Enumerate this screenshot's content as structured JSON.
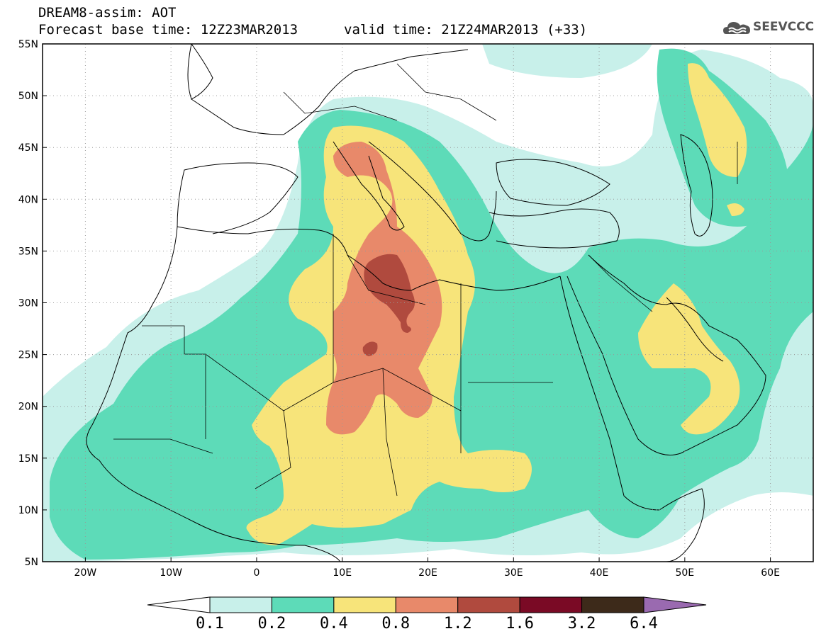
{
  "title": {
    "line1": "DREAM8-assim: AOT",
    "line2_left": "Forecast base time: 12Z23MAR2013",
    "line2_right": "valid time: 21Z24MAR2013 (+33)"
  },
  "logo": {
    "text": "SEEVCCC",
    "icon": "cloud-icon"
  },
  "map": {
    "lon_range": [
      -25,
      65
    ],
    "lat_range": [
      5,
      55
    ],
    "lon_ticks": [
      {
        "value": -20,
        "label": "20W"
      },
      {
        "value": -10,
        "label": "10W"
      },
      {
        "value": 0,
        "label": "0"
      },
      {
        "value": 10,
        "label": "10E"
      },
      {
        "value": 20,
        "label": "20E"
      },
      {
        "value": 30,
        "label": "30E"
      },
      {
        "value": 40,
        "label": "40E"
      },
      {
        "value": 50,
        "label": "50E"
      },
      {
        "value": 60,
        "label": "60E"
      }
    ],
    "lat_ticks": [
      {
        "value": 55,
        "label": "55N"
      },
      {
        "value": 50,
        "label": "50N"
      },
      {
        "value": 45,
        "label": "45N"
      },
      {
        "value": 40,
        "label": "40N"
      },
      {
        "value": 35,
        "label": "35N"
      },
      {
        "value": 30,
        "label": "30N"
      },
      {
        "value": 25,
        "label": "25N"
      },
      {
        "value": 20,
        "label": "20N"
      },
      {
        "value": 15,
        "label": "15N"
      },
      {
        "value": 10,
        "label": "10N"
      },
      {
        "value": 5,
        "label": "5N"
      }
    ],
    "grid": "dotted"
  },
  "colorbar": {
    "levels": [
      "0.1",
      "0.2",
      "0.4",
      "0.8",
      "1.2",
      "1.6",
      "3.2",
      "6.4"
    ],
    "colors": [
      "#ffffff",
      "#c8f0ea",
      "#5ddbb8",
      "#f7e47a",
      "#e8896a",
      "#b04a3e",
      "#7a0a25",
      "#3d2a1a",
      "#9a6ab0"
    ]
  }
}
